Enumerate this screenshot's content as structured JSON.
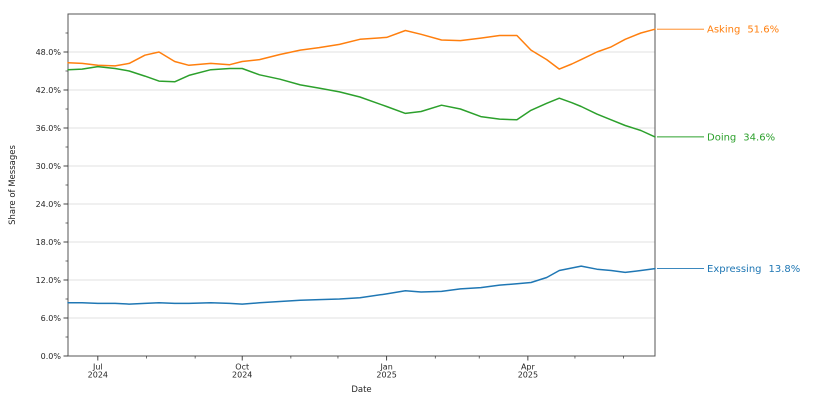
{
  "figure": {
    "background": "#ffffff",
    "spine_color": "#555555",
    "grid_color": "#e2e2e2",
    "tick_color": "#333333",
    "text_color": "#262626"
  },
  "chart_data": {
    "type": "line",
    "title": "",
    "xlabel": "Date",
    "ylabel": "Share of Messages",
    "ylim": [
      0,
      54
    ],
    "grid": "horizontal-major-only",
    "legend_position": "right-end-labels",
    "x_domain": [
      "2024-06-12",
      "2025-06-21"
    ],
    "yticks": {
      "values": [
        0,
        6,
        12,
        18,
        24,
        30,
        36,
        42,
        48
      ],
      "labels": [
        "0.0%",
        "6.0%",
        "12.0%",
        "18.0%",
        "24.0%",
        "30.0%",
        "36.0%",
        "42.0%",
        "48.0%"
      ],
      "minor_values": [
        3,
        9,
        15,
        21,
        27,
        33,
        39,
        45,
        51
      ]
    },
    "xticks": {
      "major": [
        {
          "date": "2024-07-01",
          "line1": "Jul",
          "line2": "2024"
        },
        {
          "date": "2024-10-01",
          "line1": "Oct",
          "line2": "2024"
        },
        {
          "date": "2025-01-01",
          "line1": "Jan",
          "line2": "2025"
        },
        {
          "date": "2025-04-01",
          "line1": "Apr",
          "line2": "2025"
        }
      ],
      "minor_dates": [
        "2024-08-01",
        "2024-09-01",
        "2024-11-01",
        "2024-12-01",
        "2025-02-01",
        "2025-03-01",
        "2025-05-01",
        "2025-06-01"
      ]
    },
    "dates": [
      "2024-06-12",
      "2024-06-21",
      "2024-07-01",
      "2024-07-12",
      "2024-07-21",
      "2024-07-31",
      "2024-08-09",
      "2024-08-19",
      "2024-08-28",
      "2024-09-11",
      "2024-09-23",
      "2024-10-01",
      "2024-10-12",
      "2024-10-25",
      "2024-11-07",
      "2024-11-19",
      "2024-12-02",
      "2024-12-15",
      "2025-01-01",
      "2025-01-13",
      "2025-01-23",
      "2025-02-05",
      "2025-02-17",
      "2025-03-02",
      "2025-03-14",
      "2025-03-25",
      "2025-04-03",
      "2025-04-13",
      "2025-04-21",
      "2025-04-29",
      "2025-05-05",
      "2025-05-15",
      "2025-05-24",
      "2025-06-02",
      "2025-06-12",
      "2025-06-21"
    ],
    "series": [
      {
        "name": "Asking",
        "color": "#ff7f0e",
        "end_value_label": "51.6%",
        "values": [
          46.3,
          46.2,
          45.9,
          45.8,
          46.2,
          47.5,
          48.0,
          46.5,
          45.9,
          46.2,
          46.0,
          46.5,
          46.8,
          47.6,
          48.3,
          48.7,
          49.2,
          50.0,
          50.3,
          51.4,
          50.8,
          49.9,
          49.8,
          50.2,
          50.6,
          50.6,
          48.3,
          46.8,
          45.3,
          46.1,
          46.8,
          48.0,
          48.8,
          50.0,
          51.0,
          51.6
        ]
      },
      {
        "name": "Doing",
        "color": "#2ca02c",
        "end_value_label": "34.6%",
        "values": [
          45.2,
          45.3,
          45.7,
          45.4,
          45.0,
          44.2,
          43.4,
          43.3,
          44.3,
          45.2,
          45.4,
          45.4,
          44.4,
          43.7,
          42.8,
          42.3,
          41.7,
          40.9,
          39.4,
          38.3,
          38.6,
          39.6,
          39.0,
          37.8,
          37.4,
          37.3,
          38.8,
          39.9,
          40.7,
          40.0,
          39.4,
          38.2,
          37.3,
          36.4,
          35.6,
          34.6
        ]
      },
      {
        "name": "Expressing",
        "color": "#1f77b4",
        "end_value_label": "13.8%",
        "values": [
          8.4,
          8.4,
          8.3,
          8.3,
          8.2,
          8.3,
          8.4,
          8.3,
          8.3,
          8.4,
          8.3,
          8.2,
          8.4,
          8.6,
          8.8,
          8.9,
          9.0,
          9.2,
          9.8,
          10.3,
          10.1,
          10.2,
          10.6,
          10.8,
          11.2,
          11.4,
          11.6,
          12.4,
          13.5,
          13.9,
          14.2,
          13.7,
          13.5,
          13.2,
          13.5,
          13.8
        ]
      }
    ]
  }
}
